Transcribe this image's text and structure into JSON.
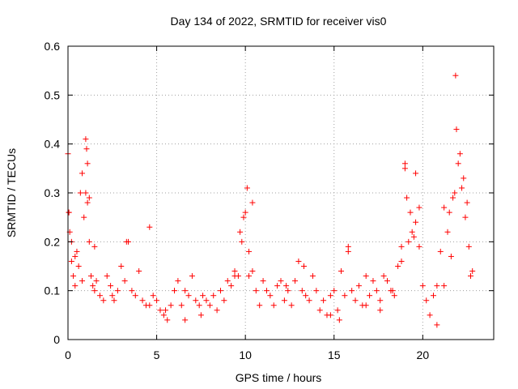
{
  "chart_data": {
    "type": "scatter",
    "title": "Day 134 of 2022, SRMTID for receiver vis0",
    "xlabel": "GPS time / hours",
    "ylabel": "SRMTID / TECUs",
    "xlim": [
      0,
      24
    ],
    "ylim": [
      0,
      0.6
    ],
    "xticks": [
      0,
      5,
      10,
      15,
      20
    ],
    "yticks": [
      0,
      0.1,
      0.2,
      0.3,
      0.4,
      0.5,
      0.6
    ],
    "xtick_labels": [
      "0",
      "5",
      "10",
      "15",
      "20"
    ],
    "ytick_labels": [
      "0",
      "0.1",
      "0.2",
      "0.3",
      "0.4",
      "0.5",
      "0.6"
    ],
    "grid": true,
    "marker": "+",
    "color": "#ff0000",
    "series": [
      {
        "name": "vis0",
        "x": [
          0.0,
          0.05,
          0.1,
          0.2,
          0.3,
          0.4,
          0.5,
          0.6,
          0.7,
          0.8,
          0.9,
          1.0,
          1.05,
          1.1,
          1.2,
          1.3,
          1.4,
          1.5,
          1.6,
          1.8,
          2.0,
          2.2,
          2.4,
          2.6,
          2.8,
          3.0,
          3.2,
          3.4,
          3.6,
          3.8,
          4.0,
          4.2,
          4.4,
          4.6,
          4.8,
          5.0,
          5.2,
          5.4,
          5.6,
          5.8,
          6.0,
          6.2,
          6.4,
          6.6,
          6.8,
          7.0,
          7.2,
          7.4,
          7.6,
          7.8,
          8.0,
          8.2,
          8.4,
          8.6,
          8.8,
          9.0,
          9.2,
          9.4,
          9.6,
          9.8,
          10.0,
          10.1,
          10.2,
          10.4,
          10.6,
          10.8,
          11.0,
          11.2,
          11.4,
          11.6,
          11.8,
          12.0,
          12.2,
          12.4,
          12.6,
          12.8,
          13.0,
          13.2,
          13.4,
          13.6,
          13.8,
          14.0,
          14.2,
          14.4,
          14.6,
          14.8,
          15.0,
          15.2,
          15.4,
          15.6,
          15.8,
          16.0,
          16.2,
          16.4,
          16.6,
          16.8,
          17.0,
          17.2,
          17.4,
          17.6,
          17.8,
          18.0,
          18.2,
          18.4,
          18.6,
          18.8,
          19.0,
          19.1,
          19.2,
          19.4,
          19.6,
          19.8,
          20.0,
          20.2,
          20.4,
          20.6,
          20.8,
          21.0,
          21.2,
          21.4,
          21.6,
          21.8,
          21.85,
          22.0,
          22.2,
          22.4,
          22.6,
          22.8,
          0.05,
          0.2,
          0.4,
          0.8,
          1.0,
          1.1,
          1.2,
          1.5,
          2.5,
          3.3,
          4.6,
          5.5,
          6.6,
          7.5,
          9.4,
          9.7,
          9.9,
          10.2,
          10.4,
          12.3,
          13.3,
          14.8,
          15.3,
          15.8,
          16.8,
          17.6,
          18.3,
          18.8,
          19.0,
          19.3,
          19.5,
          19.6,
          19.8,
          20.8,
          21.2,
          21.5,
          21.7,
          21.9,
          22.1,
          22.3,
          22.5,
          22.7
        ],
        "y": [
          0.38,
          0.26,
          0.22,
          0.16,
          0.13,
          0.11,
          0.18,
          0.15,
          0.3,
          0.34,
          0.25,
          0.41,
          0.39,
          0.28,
          0.2,
          0.13,
          0.11,
          0.1,
          0.12,
          0.09,
          0.08,
          0.13,
          0.11,
          0.08,
          0.1,
          0.15,
          0.12,
          0.2,
          0.1,
          0.09,
          0.14,
          0.08,
          0.07,
          0.23,
          0.09,
          0.08,
          0.06,
          0.05,
          0.04,
          0.07,
          0.1,
          0.12,
          0.07,
          0.1,
          0.09,
          0.13,
          0.08,
          0.07,
          0.09,
          0.08,
          0.07,
          0.09,
          0.06,
          0.1,
          0.08,
          0.12,
          0.11,
          0.14,
          0.13,
          0.2,
          0.26,
          0.31,
          0.13,
          0.14,
          0.1,
          0.07,
          0.12,
          0.1,
          0.09,
          0.07,
          0.11,
          0.12,
          0.08,
          0.1,
          0.07,
          0.12,
          0.16,
          0.1,
          0.09,
          0.08,
          0.13,
          0.1,
          0.06,
          0.08,
          0.05,
          0.09,
          0.1,
          0.06,
          0.14,
          0.09,
          0.18,
          0.1,
          0.08,
          0.11,
          0.07,
          0.13,
          0.09,
          0.12,
          0.1,
          0.08,
          0.13,
          0.12,
          0.1,
          0.09,
          0.15,
          0.16,
          0.36,
          0.29,
          0.2,
          0.22,
          0.24,
          0.27,
          0.11,
          0.08,
          0.05,
          0.09,
          0.11,
          0.18,
          0.27,
          0.22,
          0.17,
          0.3,
          0.54,
          0.36,
          0.31,
          0.25,
          0.19,
          0.14,
          0.26,
          0.2,
          0.17,
          0.12,
          0.3,
          0.36,
          0.29,
          0.19,
          0.09,
          0.2,
          0.07,
          0.06,
          0.04,
          0.05,
          0.13,
          0.22,
          0.25,
          0.18,
          0.28,
          0.11,
          0.15,
          0.05,
          0.04,
          0.19,
          0.07,
          0.06,
          0.1,
          0.19,
          0.35,
          0.26,
          0.21,
          0.34,
          0.19,
          0.03,
          0.11,
          0.26,
          0.29,
          0.43,
          0.38,
          0.33,
          0.28,
          0.13
        ]
      }
    ]
  }
}
